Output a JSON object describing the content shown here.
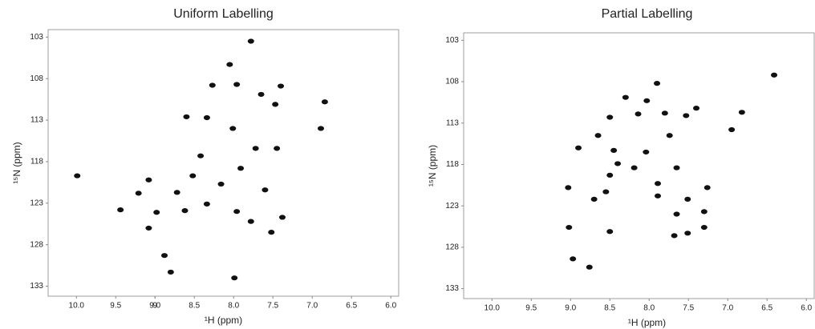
{
  "chart_data": [
    {
      "type": "scatter",
      "title": "Uniform Labelling",
      "x_label": "¹H (ppm)",
      "y_label": "¹⁵N (ppm)",
      "xlim": [
        10.36,
        5.9
      ],
      "ylim": [
        102.1,
        134.2
      ],
      "xticks": [
        {
          "value": 10,
          "label": "10.0"
        },
        9.5,
        9,
        {
          "value": 9,
          "label": "9.0"
        },
        8.5,
        {
          "value": 8,
          "label": "8.0"
        },
        7.5,
        {
          "value": 7,
          "label": "7.0"
        },
        6.5,
        {
          "value": 6,
          "label": "6.0"
        }
      ],
      "yticks": [
        103,
        108,
        113,
        118,
        123,
        128,
        133
      ],
      "series": [
        {
          "color": "#111111",
          "x": [
            7.78,
            8.05,
            8.27,
            7.96,
            7.4,
            7.65,
            8.6,
            8.34,
            8.01,
            7.47,
            6.84,
            6.89,
            7.72,
            7.45,
            8.42,
            8.52,
            8.16,
            7.91,
            9.08,
            8.98,
            9.21,
            9.44,
            9.99,
            8.62,
            8.34,
            7.78,
            7.38,
            7.52,
            7.96,
            9.08,
            8.88,
            8.8,
            7.99,
            7.6,
            8.72
          ],
          "y": [
            103.5,
            106.3,
            108.8,
            108.7,
            108.9,
            109.9,
            112.6,
            112.7,
            114.0,
            111.1,
            110.8,
            114.0,
            116.4,
            116.4,
            117.3,
            119.7,
            120.7,
            118.8,
            120.2,
            124.1,
            121.8,
            123.8,
            119.7,
            123.9,
            123.1,
            125.2,
            124.7,
            126.5,
            124.0,
            126.0,
            129.3,
            131.3,
            132.0,
            121.4,
            121.7
          ]
        }
      ]
    },
    {
      "type": "scatter",
      "title": "Partial Labelling",
      "x_label": "¹H (ppm)",
      "y_label": "¹⁵N (ppm)",
      "xlim": [
        10.36,
        5.9
      ],
      "ylim": [
        102.1,
        134.2
      ],
      "xticks": [
        {
          "value": 10,
          "label": "10.0"
        },
        9.5,
        {
          "value": 9,
          "label": "9.0"
        },
        8.5,
        {
          "value": 8,
          "label": "8.0"
        },
        7.5,
        {
          "value": 7,
          "label": "7.0"
        },
        6.5,
        {
          "value": 6,
          "label": "6.0"
        }
      ],
      "yticks": [
        103,
        108,
        113,
        118,
        123,
        128,
        133
      ],
      "series": [
        {
          "color": "#111111",
          "x": [
            6.41,
            7.9,
            8.3,
            8.03,
            8.5,
            8.14,
            7.8,
            7.4,
            7.53,
            6.82,
            6.95,
            7.74,
            8.9,
            8.65,
            8.45,
            8.04,
            8.4,
            8.19,
            8.5,
            7.89,
            7.65,
            7.26,
            9.03,
            8.7,
            8.55,
            7.89,
            7.51,
            7.65,
            7.3,
            7.3,
            7.51,
            9.02,
            8.5,
            8.97,
            8.76,
            7.68
          ],
          "y": [
            107.2,
            108.2,
            109.9,
            110.3,
            112.3,
            111.9,
            111.8,
            111.2,
            112.1,
            111.7,
            113.8,
            114.5,
            116.0,
            114.5,
            116.3,
            116.5,
            117.9,
            118.4,
            119.3,
            120.3,
            118.4,
            120.8,
            120.8,
            122.2,
            121.3,
            121.8,
            122.2,
            124.0,
            123.7,
            125.6,
            126.3,
            125.6,
            126.1,
            129.4,
            130.4,
            126.6
          ]
        }
      ]
    }
  ]
}
